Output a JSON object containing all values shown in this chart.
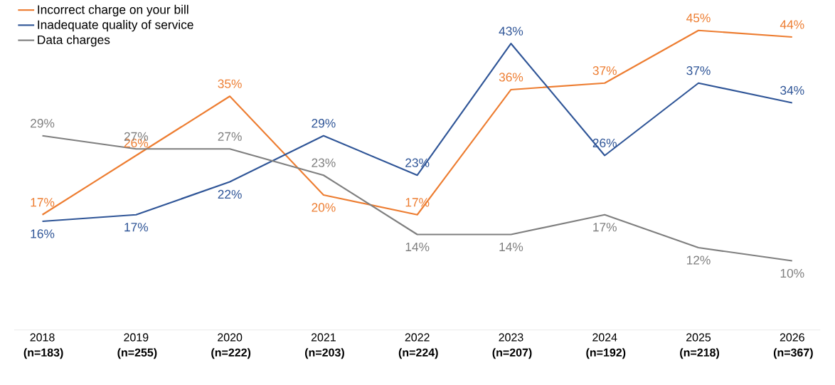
{
  "chart_data": {
    "type": "line",
    "categories": [
      "2018 **(n=183)**",
      "2019 **(n=255)**",
      "2020 **(n=222)**",
      "2021 **(n=203)**",
      "2022 **(n=224)**",
      "2023 **(n=207)**",
      "2024 **(n=192)**",
      "2025 **(n=218)**",
      "2026 **(n=367)**"
    ],
    "series": [
      {
        "name": "Incorrect charge on your bill",
        "color": "#ed7d31",
        "values": [
          17,
          26,
          35,
          20,
          17,
          36,
          37,
          45,
          44
        ],
        "value_labels": [
          "17%",
          "26%",
          "35%",
          "20%",
          "17%",
          "36%",
          "37%",
          "45%",
          "44%"
        ]
      },
      {
        "name": "Inadequate quality of service",
        "color": "#2f5597",
        "values": [
          16,
          17,
          22,
          29,
          23,
          43,
          26,
          37,
          34
        ],
        "value_labels": [
          "16%",
          "17%",
          "22%",
          "29%",
          "23%",
          "43%",
          "26%",
          "37%",
          "34%"
        ]
      },
      {
        "name": "Data charges",
        "color": "#7f7f7f",
        "values": [
          29,
          27,
          27,
          23,
          14,
          14,
          17,
          12,
          10
        ],
        "value_labels": [
          "29%",
          "27%",
          "27%",
          "23%",
          "14%",
          "14%",
          "17%",
          "12%",
          "10%"
        ]
      }
    ],
    "legend": "top left",
    "grid": false,
    "marker": "none",
    "line_style": "solid"
  }
}
